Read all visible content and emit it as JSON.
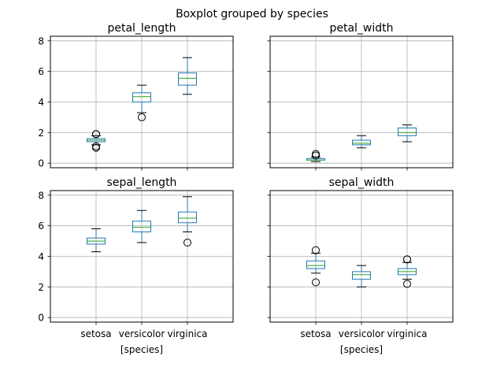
{
  "figure": {
    "title": "Boxplot grouped by species",
    "xlabel": "[species]"
  },
  "colors": {
    "box": "#1f77b4",
    "median": "#2ca02c",
    "cap": "#000000",
    "grid": "#b0b0b0",
    "flier": "#000000"
  },
  "chart_data": [
    {
      "type": "box",
      "title": "petal_length",
      "categories": [
        "setosa",
        "versicolor",
        "virginica"
      ],
      "yticks": [
        "0",
        "2",
        "4",
        "6",
        "8"
      ],
      "ylim": [
        -0.3,
        8.3
      ],
      "grid": true,
      "boxes": [
        {
          "whislo": 1.2,
          "q1": 1.4,
          "med": 1.5,
          "q3": 1.6,
          "whishi": 1.8,
          "fliers": [
            1.9,
            1.9,
            1.0,
            1.1
          ]
        },
        {
          "whislo": 3.3,
          "q1": 4.0,
          "med": 4.35,
          "q3": 4.6,
          "whishi": 5.1,
          "fliers": [
            3.0
          ]
        },
        {
          "whislo": 4.5,
          "q1": 5.1,
          "med": 5.55,
          "q3": 5.9,
          "whishi": 6.9,
          "fliers": []
        }
      ]
    },
    {
      "type": "box",
      "title": "petal_width",
      "categories": [
        "setosa",
        "versicolor",
        "virginica"
      ],
      "yticks": [
        "0",
        "2",
        "4",
        "6",
        "8"
      ],
      "ylim": [
        -0.3,
        8.3
      ],
      "grid": true,
      "boxes": [
        {
          "whislo": 0.1,
          "q1": 0.2,
          "med": 0.2,
          "q3": 0.3,
          "whishi": 0.4,
          "fliers": [
            0.5,
            0.6
          ]
        },
        {
          "whislo": 1.0,
          "q1": 1.2,
          "med": 1.3,
          "q3": 1.5,
          "whishi": 1.8,
          "fliers": []
        },
        {
          "whislo": 1.4,
          "q1": 1.8,
          "med": 2.0,
          "q3": 2.3,
          "whishi": 2.5,
          "fliers": []
        }
      ]
    },
    {
      "type": "box",
      "title": "sepal_length",
      "categories": [
        "setosa",
        "versicolor",
        "virginica"
      ],
      "yticks": [
        "0",
        "2",
        "4",
        "6",
        "8"
      ],
      "ylim": [
        -0.3,
        8.3
      ],
      "grid": true,
      "boxes": [
        {
          "whislo": 4.3,
          "q1": 4.8,
          "med": 5.0,
          "q3": 5.2,
          "whishi": 5.8,
          "fliers": []
        },
        {
          "whislo": 4.9,
          "q1": 5.6,
          "med": 5.9,
          "q3": 6.3,
          "whishi": 7.0,
          "fliers": []
        },
        {
          "whislo": 5.6,
          "q1": 6.2,
          "med": 6.5,
          "q3": 6.9,
          "whishi": 7.9,
          "fliers": [
            4.9
          ]
        }
      ]
    },
    {
      "type": "box",
      "title": "sepal_width",
      "categories": [
        "setosa",
        "versicolor",
        "virginica"
      ],
      "yticks": [
        "0",
        "2",
        "4",
        "6",
        "8"
      ],
      "ylim": [
        -0.3,
        8.3
      ],
      "grid": true,
      "boxes": [
        {
          "whislo": 2.9,
          "q1": 3.2,
          "med": 3.4,
          "q3": 3.7,
          "whishi": 4.2,
          "fliers": [
            4.4,
            2.3
          ]
        },
        {
          "whislo": 2.0,
          "q1": 2.5,
          "med": 2.8,
          "q3": 3.0,
          "whishi": 3.4,
          "fliers": []
        },
        {
          "whislo": 2.5,
          "q1": 2.8,
          "med": 3.0,
          "q3": 3.2,
          "whishi": 3.6,
          "fliers": [
            3.8,
            3.8,
            2.2
          ]
        }
      ]
    }
  ]
}
